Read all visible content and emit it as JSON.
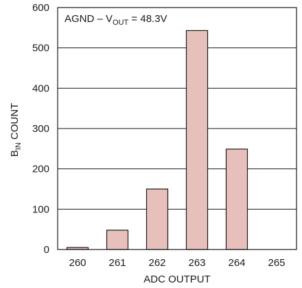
{
  "chart_data": {
    "type": "bar",
    "categories": [
      "260",
      "261",
      "262",
      "263",
      "264",
      "265"
    ],
    "values": [
      5,
      48,
      150,
      543,
      249,
      0
    ],
    "ylim": [
      0,
      600
    ],
    "yticks": [
      "0",
      "100",
      "200",
      "300",
      "400",
      "500",
      "600"
    ],
    "xlabel": "ADC OUTPUT",
    "ylabel": {
      "main": "B",
      "sub": "IN",
      "rest": " COUNT"
    },
    "annotation": {
      "pre": "AGND – V",
      "sub": "OUT",
      "post": " = 48.3V"
    },
    "grid": true,
    "colors": {
      "bar_fill": "#e8c0bb",
      "bar_stroke": "#1a1a1a",
      "axis": "#1a1a1a",
      "grid": "#1a1a1a"
    }
  }
}
